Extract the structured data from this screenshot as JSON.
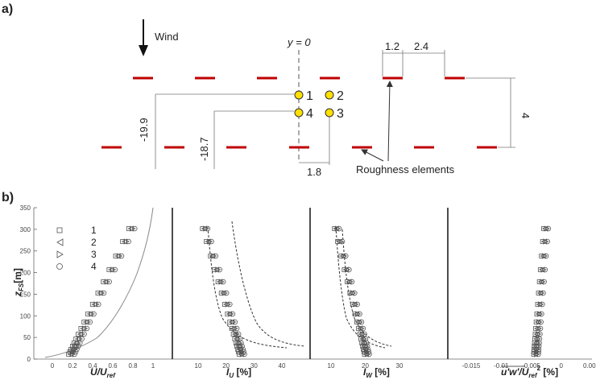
{
  "panel_a": {
    "label": "a)",
    "wind_label": "Wind",
    "centerline_label": "y = 0",
    "dim_width": "1.2",
    "dim_gap": "2.4",
    "dim_row_spacing": "4",
    "dim_z1": "-19.9",
    "dim_z2": "-18.7",
    "dim_y": "1.8",
    "roughness_label": "Roughness elements",
    "points": [
      "1",
      "2",
      "3",
      "4"
    ],
    "colors": {
      "roughness": "#c00000",
      "point_fill": "#ffe000",
      "point_stroke": "#333333"
    }
  },
  "panel_b": {
    "label": "b)",
    "y_axis_title": "z",
    "y_axis_sub": "FS",
    "y_axis_unit": "[m]",
    "y_ticks": [
      "0",
      "50",
      "100",
      "150",
      "200",
      "250",
      "300",
      "350"
    ],
    "legend": [
      {
        "marker": "square",
        "label": "1"
      },
      {
        "marker": "triangle-left",
        "label": "2"
      },
      {
        "marker": "triangle-right",
        "label": "3"
      },
      {
        "marker": "circle",
        "label": "4"
      }
    ],
    "subplots": [
      {
        "title_main": "U/U",
        "title_sub": "ref",
        "title_tail": "",
        "ticks": [
          "0",
          "0.2",
          "0.4",
          "0.6",
          "0.8",
          "1"
        ]
      },
      {
        "title_main": "I",
        "title_sub": "U",
        "title_tail": " [%]",
        "ticks": [
          "10",
          "20",
          "30",
          "40"
        ]
      },
      {
        "title_main": "I",
        "title_sub": "W",
        "title_tail": " [%]",
        "ticks": [
          "10",
          "20",
          "30"
        ]
      },
      {
        "title_main": "u'w'/U",
        "title_sub": "ref",
        "title_sup": "2",
        "title_tail": " [%]",
        "ticks": [
          "-0.015",
          "-0.01",
          "-0.005",
          "0",
          "0.005"
        ]
      }
    ]
  }
}
